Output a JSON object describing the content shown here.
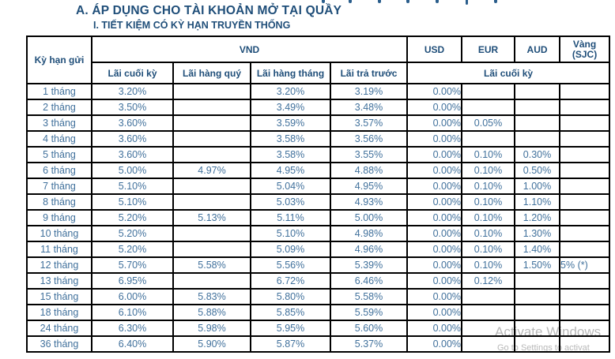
{
  "page": {
    "title": "A. ÁP DỤNG CHO TÀI KHOẢN MỞ TẠI QUẦY",
    "subtitle": "I. TIẾT KIỆM CÓ KỲ HẠN TRUYỀN THỐNG"
  },
  "colors": {
    "heading_text": "#1F4E79",
    "data_text": "#41719C",
    "table_border": "#000000",
    "watermark_text": "#8C8C8C"
  },
  "table": {
    "header": {
      "term_label": "Kỳ hạn gửi",
      "vnd_label": "VND",
      "vnd_subcolumns": [
        "Lãi cuối kỳ",
        "Lãi hàng quý",
        "Lãi hàng tháng",
        "Lãi trả trước"
      ],
      "usd_label": "USD",
      "eur_label": "EUR",
      "aud_label": "AUD",
      "gold_label_line1": "Vàng",
      "gold_label_line2": "(SJC)",
      "fx_sub_label": "Lãi cuối kỳ"
    },
    "rows": [
      {
        "term": "1 tháng",
        "cells": [
          "3.20%",
          "",
          "3.20%",
          "3.19%",
          "0.00%",
          "",
          "",
          ""
        ]
      },
      {
        "term": "2 tháng",
        "cells": [
          "3.50%",
          "",
          "3.49%",
          "3.48%",
          "0.00%",
          "",
          "",
          ""
        ]
      },
      {
        "term": "3 tháng",
        "cells": [
          "3.60%",
          "",
          "3.59%",
          "3.57%",
          "0.00%",
          "0.05%",
          "",
          ""
        ]
      },
      {
        "term": "4 tháng",
        "cells": [
          "3.60%",
          "",
          "3.58%",
          "3.56%",
          "0.00%",
          "",
          "",
          ""
        ]
      },
      {
        "term": "5 tháng",
        "cells": [
          "3.60%",
          "",
          "3.58%",
          "3.55%",
          "0.00%",
          "0.10%",
          "0.30%",
          ""
        ]
      },
      {
        "term": "6 tháng",
        "cells": [
          "5.00%",
          "4.97%",
          "4.95%",
          "4.88%",
          "0.00%",
          "0.10%",
          "0.50%",
          ""
        ]
      },
      {
        "term": "7 tháng",
        "cells": [
          "5.10%",
          "",
          "5.04%",
          "4.95%",
          "0.00%",
          "0.10%",
          "1.00%",
          ""
        ]
      },
      {
        "term": "8 tháng",
        "cells": [
          "5.10%",
          "",
          "5.03%",
          "4.93%",
          "0.00%",
          "0.10%",
          "1.10%",
          ""
        ]
      },
      {
        "term": "9 tháng",
        "cells": [
          "5.20%",
          "5.13%",
          "5.11%",
          "5.00%",
          "0.00%",
          "0.10%",
          "1.20%",
          ""
        ]
      },
      {
        "term": "10 tháng",
        "cells": [
          "5.20%",
          "",
          "5.10%",
          "4.98%",
          "0.00%",
          "0.10%",
          "1.30%",
          ""
        ]
      },
      {
        "term": "11 tháng",
        "cells": [
          "5.20%",
          "",
          "5.09%",
          "4.96%",
          "0.00%",
          "0.10%",
          "1.40%",
          ""
        ]
      },
      {
        "term": "12 tháng",
        "cells": [
          "5.70%",
          "5.58%",
          "5.56%",
          "5.39%",
          "0.00%",
          "0.10%",
          "1.50%",
          "5% (*)"
        ]
      },
      {
        "term": "13 tháng",
        "cells": [
          "6.95%",
          "",
          "6.72%",
          "6.46%",
          "0.00%",
          "0.12%",
          "",
          ""
        ]
      },
      {
        "term": "15 tháng",
        "cells": [
          "6.00%",
          "5.83%",
          "5.80%",
          "5.58%",
          "0.00%",
          "",
          "",
          ""
        ]
      },
      {
        "term": "18 tháng",
        "cells": [
          "6.10%",
          "5.88%",
          "5.85%",
          "5.59%",
          "0.00%",
          "",
          "",
          ""
        ]
      },
      {
        "term": "24 tháng",
        "cells": [
          "6.30%",
          "5.98%",
          "5.95%",
          "5.60%",
          "0.00%",
          "",
          "",
          ""
        ]
      },
      {
        "term": "36 tháng",
        "cells": [
          "6.40%",
          "5.90%",
          "5.87%",
          "5.37%",
          "0.00%",
          "",
          "",
          ""
        ]
      }
    ]
  },
  "watermark": {
    "line1": "Activate Windows",
    "line2": "Go to Settings to activat"
  }
}
